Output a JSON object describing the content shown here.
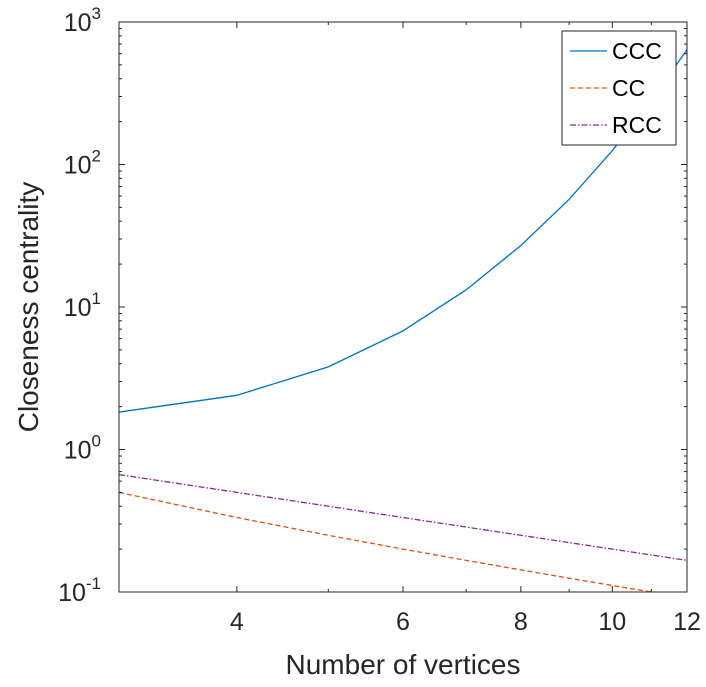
{
  "chart_data": {
    "type": "line",
    "xscale": "log",
    "yscale": "log",
    "xlim": [
      3,
      12
    ],
    "ylim": [
      0.1,
      1000
    ],
    "xlabel": "Number of vertices",
    "ylabel": "Closeness centrality",
    "xticks": [
      {
        "value": 4,
        "label": "4"
      },
      {
        "value": 6,
        "label": "6"
      },
      {
        "value": 8,
        "label": "8"
      },
      {
        "value": 10,
        "label": "10"
      },
      {
        "value": 12,
        "label": "12"
      }
    ],
    "yticks": [
      {
        "value": 0.1,
        "base": "10",
        "exp": "-1"
      },
      {
        "value": 1,
        "base": "10",
        "exp": "0"
      },
      {
        "value": 10,
        "base": "10",
        "exp": "1"
      },
      {
        "value": 100,
        "base": "10",
        "exp": "2"
      },
      {
        "value": 1000,
        "base": "10",
        "exp": "3"
      }
    ],
    "x": [
      3,
      4,
      5,
      6,
      7,
      8,
      9,
      10,
      11,
      12
    ],
    "series": [
      {
        "name": "CCC",
        "color": "#0072bd",
        "dash": "solid",
        "values": [
          1.83,
          2.4,
          3.8,
          6.8,
          13.2,
          27,
          57,
          125,
          280,
          640
        ]
      },
      {
        "name": "CC",
        "color": "#d95319",
        "dash": "dashed",
        "values": [
          0.5,
          0.333,
          0.25,
          0.2,
          0.1667,
          0.1429,
          0.125,
          0.1111,
          0.1,
          0.0909
        ]
      },
      {
        "name": "RCC",
        "color": "#7e2f8e",
        "dash": "dashdot",
        "values": [
          0.667,
          0.5,
          0.4,
          0.333,
          0.2857,
          0.25,
          0.2222,
          0.2,
          0.1818,
          0.1667
        ]
      }
    ],
    "legend": "top-right",
    "grid": false
  }
}
